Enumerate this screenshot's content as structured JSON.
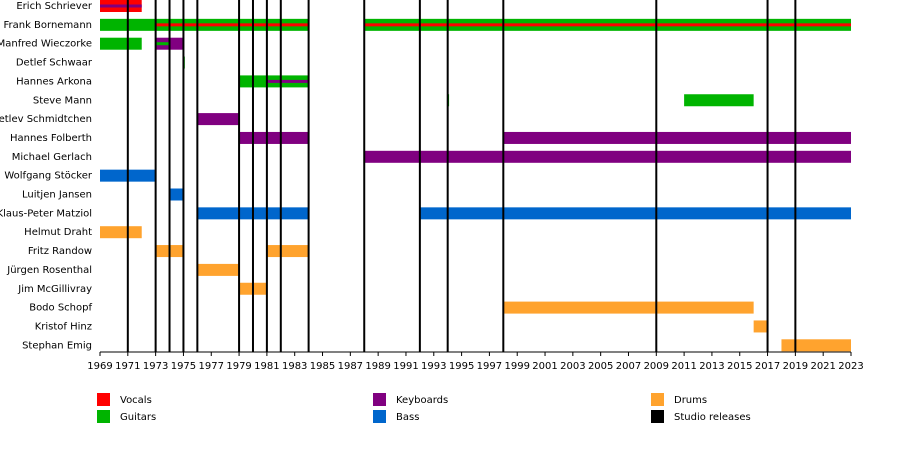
{
  "chart_data": {
    "type": "timeline",
    "categories": [
      "Erich Schriever",
      "Frank Bornemann",
      "Manfred Wieczorke",
      "Detlef Schwaar",
      "Hannes Arkona",
      "Steve Mann",
      "Detlev Schmidtchen",
      "Hannes Folberth",
      "Michael Gerlach",
      "Wolfgang Stöcker",
      "Luitjen Jansen",
      "Klaus-Peter Matziol",
      "Helmut Draht",
      "Fritz Randow",
      "Jürgen Rosenthal",
      "Jim McGillivray",
      "Bodo Schopf",
      "Kristof Hinz",
      "Stephan Emig"
    ],
    "xlim": [
      1969,
      2023
    ],
    "xticks": [
      1969,
      1971,
      1973,
      1975,
      1977,
      1979,
      1981,
      1983,
      1985,
      1987,
      1989,
      1991,
      1993,
      1995,
      1997,
      1999,
      2001,
      2003,
      2005,
      2007,
      2009,
      2011,
      2013,
      2015,
      2017,
      2019,
      2021,
      2023
    ],
    "series": [
      {
        "name": "Vocals",
        "color": "#ff0000",
        "spans": [
          {
            "row": 0,
            "start": 1969,
            "end": 1972
          },
          {
            "row": 1,
            "start": 1973,
            "end": 1984,
            "thin": true
          },
          {
            "row": 1,
            "start": 1988,
            "end": 2023,
            "thin": true
          }
        ]
      },
      {
        "name": "Guitars",
        "color": "#00b400",
        "spans": [
          {
            "row": 1,
            "start": 1969,
            "end": 1984
          },
          {
            "row": 1,
            "start": 1988,
            "end": 2023
          },
          {
            "row": 2,
            "start": 1969,
            "end": 1972
          },
          {
            "row": 2,
            "start": 1973,
            "end": 1974,
            "thin": true
          },
          {
            "row": 3,
            "start": 1975,
            "end": 1975.1
          },
          {
            "row": 4,
            "start": 1979,
            "end": 1984
          },
          {
            "row": 5,
            "start": 1994,
            "end": 1994.1
          },
          {
            "row": 5,
            "start": 2011,
            "end": 2016
          }
        ]
      },
      {
        "name": "Keyboards",
        "color": "#800080",
        "spans": [
          {
            "row": 0,
            "start": 1969,
            "end": 1972,
            "thin": true
          },
          {
            "row": 2,
            "start": 1973,
            "end": 1975
          },
          {
            "row": 4,
            "start": 1981,
            "end": 1984,
            "thin": true
          },
          {
            "row": 6,
            "start": 1976,
            "end": 1979
          },
          {
            "row": 7,
            "start": 1979,
            "end": 1984
          },
          {
            "row": 7,
            "start": 1998,
            "end": 2023
          },
          {
            "row": 8,
            "start": 1988,
            "end": 2023
          }
        ]
      },
      {
        "name": "Bass",
        "color": "#0066cc",
        "spans": [
          {
            "row": 9,
            "start": 1969,
            "end": 1973
          },
          {
            "row": 10,
            "start": 1974,
            "end": 1975
          },
          {
            "row": 11,
            "start": 1976,
            "end": 1984
          },
          {
            "row": 11,
            "start": 1992,
            "end": 2023
          }
        ]
      },
      {
        "name": "Drums",
        "color": "#ffa32e",
        "spans": [
          {
            "row": 12,
            "start": 1969,
            "end": 1972
          },
          {
            "row": 13,
            "start": 1973,
            "end": 1975
          },
          {
            "row": 13,
            "start": 1981,
            "end": 1984
          },
          {
            "row": 14,
            "start": 1976,
            "end": 1979
          },
          {
            "row": 15,
            "start": 1979,
            "end": 1981
          },
          {
            "row": 16,
            "start": 1998,
            "end": 2016
          },
          {
            "row": 17,
            "start": 2016,
            "end": 2017
          },
          {
            "row": 18,
            "start": 2018,
            "end": 2023
          }
        ]
      },
      {
        "name": "Studio releases",
        "color": "#000000",
        "releases": [
          1971,
          1973,
          1974,
          1975,
          1976,
          1979,
          1980,
          1981,
          1982,
          1984,
          1988,
          1992,
          1994,
          1998,
          2009,
          2017,
          2019
        ]
      }
    ]
  }
}
